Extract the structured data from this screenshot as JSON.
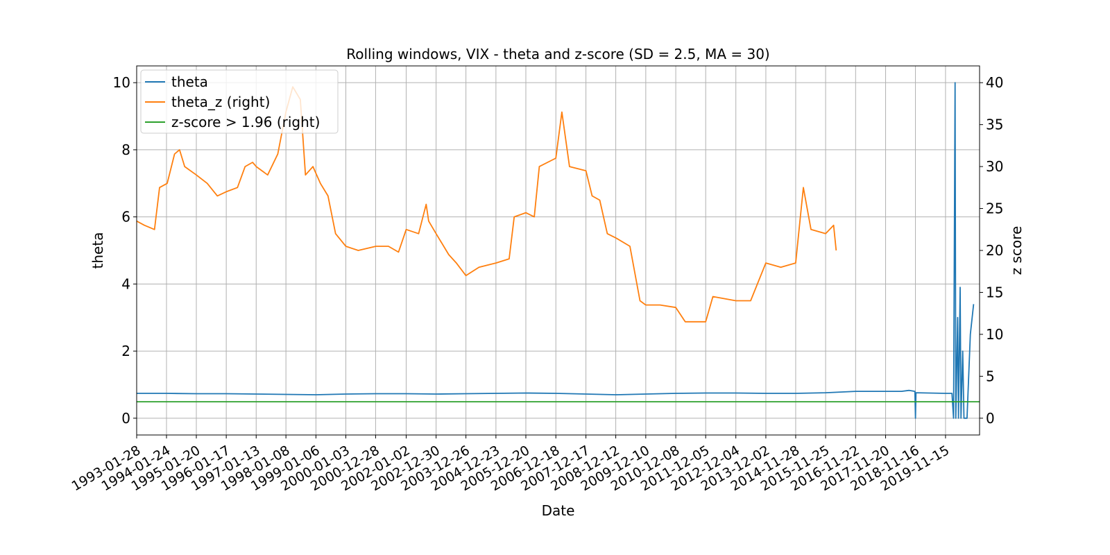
{
  "chart_data": {
    "type": "line",
    "title": "Rolling windows, VIX - theta and z-score (SD = 2.5, MA = 30)",
    "xlabel": "Date",
    "ylabel": "theta",
    "ylabel_right": "z score",
    "x_range": [
      "1993-01-28",
      "2020-12-31"
    ],
    "ylim": [
      -0.5,
      10.5
    ],
    "ylim_right": [
      -2,
      42
    ],
    "yticks": [
      "0",
      "2",
      "4",
      "6",
      "8",
      "10"
    ],
    "yticks_right": [
      "0",
      "5",
      "10",
      "15",
      "20",
      "25",
      "30",
      "35",
      "40"
    ],
    "xticks": [
      "1993-01-28",
      "1994-01-24",
      "1995-01-20",
      "1996-01-17",
      "1997-01-13",
      "1998-01-08",
      "1999-01-06",
      "2000-01-03",
      "2000-12-28",
      "2002-01-02",
      "2002-12-30",
      "2003-12-26",
      "2004-12-23",
      "2005-12-20",
      "2006-12-18",
      "2007-12-17",
      "2008-12-12",
      "2009-12-10",
      "2010-12-08",
      "2011-12-05",
      "2012-12-04",
      "2013-12-02",
      "2014-11-28",
      "2015-11-25",
      "2016-11-22",
      "2017-11-20",
      "2018-11-16",
      "2019-11-15"
    ],
    "grid": true,
    "legend_position": "upper-left",
    "series": [
      {
        "name": "theta",
        "axis": "left",
        "color": "#1f77b4",
        "points": [
          [
            "1993-01-28",
            0.74
          ],
          [
            "1994-01-24",
            0.74
          ],
          [
            "1995-01-20",
            0.73
          ],
          [
            "1996-01-17",
            0.73
          ],
          [
            "1997-01-13",
            0.72
          ],
          [
            "1998-01-08",
            0.71
          ],
          [
            "1999-01-06",
            0.7
          ],
          [
            "2000-01-03",
            0.72
          ],
          [
            "2000-12-28",
            0.73
          ],
          [
            "2002-01-02",
            0.73
          ],
          [
            "2002-12-30",
            0.72
          ],
          [
            "2003-12-26",
            0.73
          ],
          [
            "2004-12-23",
            0.74
          ],
          [
            "2005-12-20",
            0.75
          ],
          [
            "2006-12-18",
            0.74
          ],
          [
            "2007-12-17",
            0.72
          ],
          [
            "2008-12-12",
            0.7
          ],
          [
            "2009-12-10",
            0.72
          ],
          [
            "2010-12-08",
            0.74
          ],
          [
            "2011-12-05",
            0.75
          ],
          [
            "2012-12-04",
            0.75
          ],
          [
            "2013-12-02",
            0.74
          ],
          [
            "2014-11-28",
            0.74
          ],
          [
            "2015-11-25",
            0.76
          ],
          [
            "2016-11-22",
            0.8
          ],
          [
            "2017-11-20",
            0.8
          ],
          [
            "2018-06-01",
            0.8
          ],
          [
            "2018-09-01",
            0.83
          ],
          [
            "2018-11-10",
            0.8
          ],
          [
            "2018-11-16",
            0.0
          ],
          [
            "2018-11-22",
            0.76
          ],
          [
            "2019-11-15",
            0.74
          ],
          [
            "2020-02-01",
            0.74
          ],
          [
            "2020-02-20",
            0.0
          ],
          [
            "2020-03-10",
            10.0
          ],
          [
            "2020-03-18",
            0.0
          ],
          [
            "2020-04-10",
            3.0
          ],
          [
            "2020-04-20",
            0.0
          ],
          [
            "2020-05-10",
            3.9
          ],
          [
            "2020-05-20",
            0.0
          ],
          [
            "2020-06-10",
            2.0
          ],
          [
            "2020-06-25",
            0.0
          ],
          [
            "2020-08-01",
            0.0
          ],
          [
            "2020-09-10",
            2.5
          ],
          [
            "2020-10-20",
            3.4
          ]
        ]
      },
      {
        "name": "theta_z (right)",
        "axis": "right",
        "color": "#ff7f0e",
        "points": [
          [
            "1993-01-28",
            23.5
          ],
          [
            "1993-05-01",
            23.0
          ],
          [
            "1993-09-01",
            22.5
          ],
          [
            "1993-11-01",
            27.5
          ],
          [
            "1994-02-01",
            28.0
          ],
          [
            "1994-05-01",
            31.5
          ],
          [
            "1994-07-01",
            32.0
          ],
          [
            "1994-09-01",
            30.0
          ],
          [
            "1995-01-20",
            29.0
          ],
          [
            "1995-06-01",
            28.0
          ],
          [
            "1995-10-01",
            26.5
          ],
          [
            "1996-01-17",
            27.0
          ],
          [
            "1996-06-01",
            27.5
          ],
          [
            "1996-09-01",
            30.0
          ],
          [
            "1996-12-01",
            30.5
          ],
          [
            "1997-01-13",
            30.0
          ],
          [
            "1997-06-01",
            29.0
          ],
          [
            "1997-10-01",
            31.5
          ],
          [
            "1998-01-08",
            36.5
          ],
          [
            "1998-04-01",
            39.5
          ],
          [
            "1998-07-01",
            38.0
          ],
          [
            "1998-09-01",
            29.0
          ],
          [
            "1998-12-01",
            30.0
          ],
          [
            "1999-03-01",
            28.0
          ],
          [
            "1999-06-01",
            26.5
          ],
          [
            "1999-09-01",
            22.0
          ],
          [
            "2000-01-03",
            20.5
          ],
          [
            "2000-06-01",
            20.0
          ],
          [
            "2001-01-01",
            20.5
          ],
          [
            "2001-06-01",
            20.5
          ],
          [
            "2001-10-01",
            19.8
          ],
          [
            "2002-01-02",
            22.5
          ],
          [
            "2002-06-01",
            22.0
          ],
          [
            "2002-09-01",
            25.5
          ],
          [
            "2002-10-01",
            23.5
          ],
          [
            "2002-12-30",
            22.0
          ],
          [
            "2003-06-01",
            19.5
          ],
          [
            "2003-09-01",
            18.5
          ],
          [
            "2003-12-26",
            17.0
          ],
          [
            "2004-06-01",
            18.0
          ],
          [
            "2004-12-23",
            18.5
          ],
          [
            "2005-06-01",
            19.0
          ],
          [
            "2005-08-01",
            24.0
          ],
          [
            "2005-12-20",
            24.5
          ],
          [
            "2006-04-01",
            24.0
          ],
          [
            "2006-06-01",
            30.0
          ],
          [
            "2006-12-18",
            31.0
          ],
          [
            "2007-03-01",
            36.5
          ],
          [
            "2007-06-01",
            30.0
          ],
          [
            "2007-12-17",
            29.5
          ],
          [
            "2008-03-01",
            26.5
          ],
          [
            "2008-06-01",
            26.0
          ],
          [
            "2008-09-01",
            22.0
          ],
          [
            "2008-12-12",
            21.5
          ],
          [
            "2009-06-01",
            20.5
          ],
          [
            "2009-10-01",
            14.0
          ],
          [
            "2009-12-10",
            13.5
          ],
          [
            "2010-06-01",
            13.5
          ],
          [
            "2010-12-08",
            13.2
          ],
          [
            "2011-04-01",
            11.5
          ],
          [
            "2011-08-01",
            11.5
          ],
          [
            "2011-12-05",
            11.5
          ],
          [
            "2012-03-01",
            14.5
          ],
          [
            "2012-12-04",
            14.0
          ],
          [
            "2013-06-01",
            14.0
          ],
          [
            "2013-12-02",
            18.5
          ],
          [
            "2014-06-01",
            18.0
          ],
          [
            "2014-11-28",
            18.5
          ],
          [
            "2015-03-01",
            27.5
          ],
          [
            "2015-06-01",
            22.5
          ],
          [
            "2015-11-25",
            22.0
          ],
          [
            "2016-03-01",
            23.0
          ],
          [
            "2016-04-01",
            20.0
          ]
        ]
      },
      {
        "name": "z-score > 1.96 (right)",
        "axis": "right",
        "color": "#2ca02c",
        "points": [
          [
            "1993-01-28",
            1.96
          ],
          [
            "2020-12-31",
            1.96
          ]
        ]
      }
    ]
  }
}
